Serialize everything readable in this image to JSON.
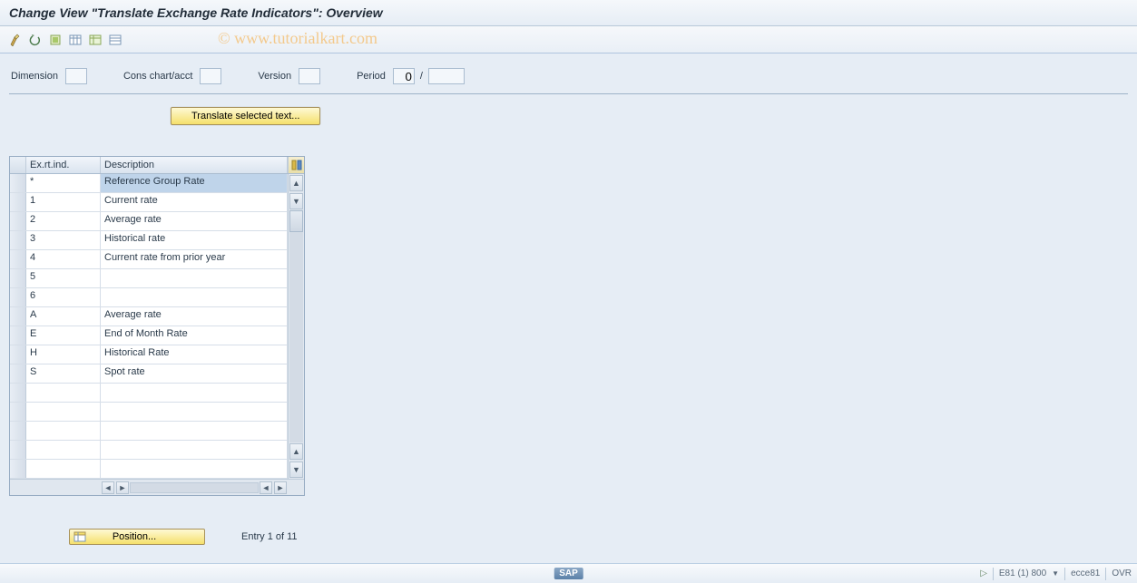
{
  "title": "Change View \"Translate Exchange Rate Indicators\": Overview",
  "watermark": "© www.tutorialkart.com",
  "toolbar": {
    "icons": [
      "toggle-change",
      "undo",
      "select-all",
      "spreadsheet-1",
      "spreadsheet-2",
      "spreadsheet-3"
    ]
  },
  "filters": {
    "dimension_label": "Dimension",
    "dimension_value": "",
    "conschart_label": "Cons chart/acct",
    "conschart_value": "",
    "version_label": "Version",
    "version_value": "",
    "period_label": "Period",
    "period_value": "0",
    "period_sep": "/",
    "period_year": ""
  },
  "translate_button": "Translate selected text...",
  "table": {
    "header_ind": "Ex.rt.ind.",
    "header_desc": "Description",
    "rows": [
      {
        "ind": "*",
        "desc": "Reference Group Rate",
        "highlight": true
      },
      {
        "ind": "1",
        "desc": "Current rate"
      },
      {
        "ind": "2",
        "desc": "Average rate"
      },
      {
        "ind": "3",
        "desc": "Historical rate"
      },
      {
        "ind": "4",
        "desc": "Current rate from prior year"
      },
      {
        "ind": "5",
        "desc": ""
      },
      {
        "ind": "6",
        "desc": ""
      },
      {
        "ind": "A",
        "desc": "Average rate"
      },
      {
        "ind": "E",
        "desc": "End of Month Rate"
      },
      {
        "ind": "H",
        "desc": "Historical Rate"
      },
      {
        "ind": "S",
        "desc": "Spot rate"
      },
      {
        "ind": "",
        "desc": ""
      },
      {
        "ind": "",
        "desc": ""
      },
      {
        "ind": "",
        "desc": ""
      },
      {
        "ind": "",
        "desc": ""
      },
      {
        "ind": "",
        "desc": ""
      }
    ]
  },
  "position_button": "Position...",
  "entry_text": "Entry 1 of 11",
  "statusbar": {
    "system": "E81 (1) 800",
    "server": "ecce81",
    "mode": "OVR"
  },
  "colors": {
    "background": "#e6edf5",
    "button_yellow_top": "#fef9d4",
    "button_yellow_bottom": "#f5e06b",
    "highlight": "#bfd4ea",
    "border": "#a9bcd0"
  }
}
